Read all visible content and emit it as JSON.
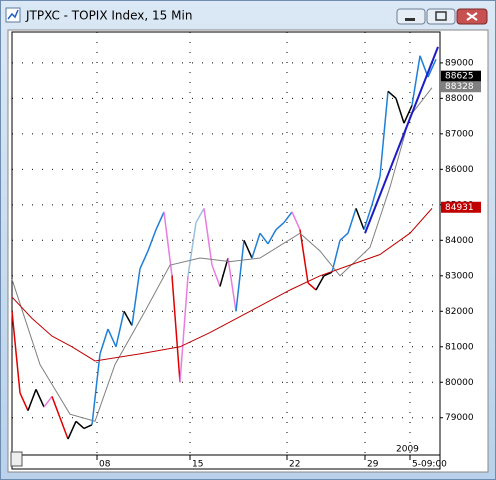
{
  "window_title": "JTPXC - TOPIX Index, 15 Min",
  "chart_data": {
    "type": "line",
    "xlim": [
      0,
      107
    ],
    "ylim": [
      77950,
      89870
    ],
    "yticks": [
      79000,
      80000,
      81000,
      82000,
      83000,
      84000,
      85000,
      86000,
      87000,
      88000,
      89000
    ],
    "xticks": [
      {
        "value": 21.25,
        "label": "08"
      },
      {
        "value": 44.5,
        "label": "15"
      },
      {
        "value": 68.75,
        "label": "22"
      },
      {
        "value": 88.25,
        "label": "29"
      },
      {
        "value": 99.5,
        "label": "5-09:00"
      }
    ],
    "x_year_label": "2009",
    "grid": true,
    "series": [
      {
        "x": [
          0,
          2,
          4,
          6,
          8,
          10,
          12,
          14,
          16,
          18,
          20,
          22,
          24,
          26,
          28,
          30,
          32,
          34,
          36,
          38,
          40,
          42,
          44,
          46,
          48,
          50,
          52,
          54,
          56,
          58,
          60,
          62,
          64,
          66,
          68,
          70,
          72,
          74,
          76,
          78,
          80,
          82,
          84,
          86,
          88,
          90,
          92,
          94,
          96,
          98,
          100,
          102,
          104,
          106
        ],
        "values": [
          82000,
          79700,
          79200,
          79800,
          79300,
          79600,
          79000,
          78400,
          78900,
          78700,
          78800,
          80800,
          81500,
          81000,
          82000,
          81600,
          83200,
          83700,
          84300,
          84800,
          83000,
          80000,
          83000,
          84500,
          84900,
          83300,
          82700,
          83500,
          82000,
          84000,
          83500,
          84200,
          83900,
          84300,
          84500,
          84800,
          84300,
          82800,
          82600,
          83000,
          83100,
          84000,
          84200,
          84900,
          84300,
          85000,
          85800,
          88200,
          88000,
          87300,
          87800,
          89200,
          88600,
          89100
        ],
        "point_colors": [
          "#e00000",
          "#e00000",
          "#e00000",
          "#000000",
          "#000000",
          "#e87ce0",
          "#e00000",
          "#e00000",
          "#000000",
          "#000000",
          "#000000",
          "#1e7fd8",
          "#1e7fd8",
          "#1e7fd8",
          "#1e7fd8",
          "#000000",
          "#1e7fd8",
          "#1e7fd8",
          "#1e7fd8",
          "#1e7fd8",
          "#e87ce0",
          "#e00000",
          "#e87ce0",
          "#9ac0e0",
          "#9ac0e0",
          "#e87ce0",
          "#e87ce0",
          "#000000",
          "#e87ce0",
          "#1e7fd8",
          "#000000",
          "#1e7fd8",
          "#1e7fd8",
          "#1e7fd8",
          "#1e7fd8",
          "#1e7fd8",
          "#e87ce0",
          "#e00000",
          "#e00000",
          "#000000",
          "#000000",
          "#1e7fd8",
          "#1e7fd8",
          "#1e7fd8",
          "#000000",
          "#1e7fd8",
          "#1e7fd8",
          "#1e7fd8",
          "#000000",
          "#000000",
          "#000000",
          "#1e7fd8",
          "#1e7fd8",
          "#1e7fd8"
        ]
      },
      {
        "color": "#808080",
        "x": [
          0,
          7,
          14.5,
          20.75,
          25.75,
          33.25,
          39.5,
          47,
          54.5,
          62,
          72,
          77,
          82,
          89.5,
          94.5,
          99.5,
          105
        ],
        "values": [
          82900,
          80500,
          79100,
          78900,
          80500,
          82000,
          83300,
          83500,
          83400,
          83500,
          84200,
          83700,
          83000,
          83800,
          85500,
          87500,
          88300
        ]
      },
      {
        "color": "#c00000",
        "x": [
          0,
          5,
          10,
          15,
          20.75,
          32,
          42,
          49.5,
          59.5,
          69.5,
          77,
          84.5,
          92,
          99.5,
          105
        ],
        "values": [
          82400,
          81800,
          81300,
          81000,
          80600,
          80800,
          81000,
          81400,
          82000,
          82600,
          83000,
          83300,
          83600,
          84200,
          84900
        ]
      },
      {
        "color": "#1c1cc8",
        "x": [
          88.25,
          106.5
        ],
        "values": [
          84200,
          89450
        ]
      }
    ],
    "price_tags": {
      "values": [
        88625,
        88328,
        84931
      ],
      "colors": [
        "#000000",
        "#808080",
        "#c00000"
      ]
    }
  }
}
